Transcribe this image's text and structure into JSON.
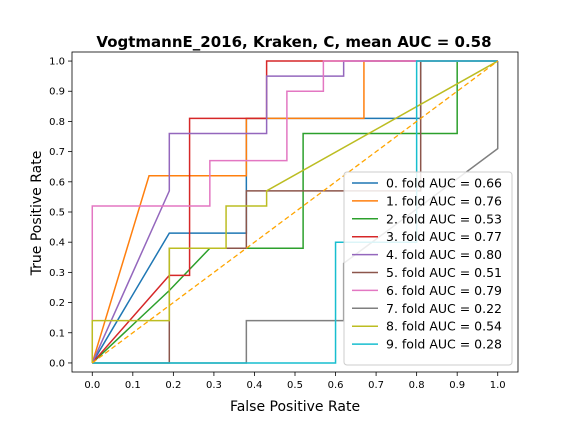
{
  "chart_data": {
    "type": "line",
    "title": "VogtmannE_2016, Kraken, C, mean AUC =  0.58",
    "xlabel": "False Positive Rate",
    "ylabel": "True Positive Rate",
    "xlim": [
      -0.05,
      1.05
    ],
    "ylim": [
      -0.03,
      1.03
    ],
    "xticks": [
      "0.0",
      "0.1",
      "0.2",
      "0.3",
      "0.4",
      "0.5",
      "0.6",
      "0.7",
      "0.8",
      "0.9",
      "1.0"
    ],
    "yticks": [
      "0.0",
      "0.1",
      "0.2",
      "0.3",
      "0.4",
      "0.5",
      "0.6",
      "0.7",
      "0.8",
      "0.9",
      "1.0"
    ],
    "grid": false,
    "legend": "lower-right",
    "diagonal": {
      "x": [
        0,
        1
      ],
      "y": [
        0,
        1
      ],
      "color": "#ffa500",
      "style": "dashed"
    },
    "series": [
      {
        "name": "0. fold AUC = 0.66",
        "color": "#1f77b4",
        "x": [
          0,
          0.19,
          0.19,
          0.38,
          0.38,
          0.67,
          0.67,
          0.81,
          0.81,
          1.0
        ],
        "y": [
          0,
          0.43,
          0.43,
          0.43,
          0.81,
          0.81,
          0.81,
          0.81,
          1.0,
          1.0
        ]
      },
      {
        "name": "1. fold AUC = 0.76",
        "color": "#ff7f0e",
        "x": [
          0,
          0.14,
          0.38,
          0.38,
          0.67,
          0.67,
          1.0
        ],
        "y": [
          0,
          0.62,
          0.62,
          0.81,
          0.81,
          1.0,
          1.0
        ]
      },
      {
        "name": "2. fold AUC = 0.53",
        "color": "#2ca02c",
        "x": [
          0,
          0.19,
          0.29,
          0.52,
          0.52,
          0.9,
          0.9,
          1.0
        ],
        "y": [
          0,
          0.24,
          0.38,
          0.38,
          0.76,
          0.76,
          1.0,
          1.0
        ]
      },
      {
        "name": "3. fold AUC = 0.77",
        "color": "#d62728",
        "x": [
          0,
          0.19,
          0.24,
          0.24,
          0.43,
          0.43,
          1.0
        ],
        "y": [
          0,
          0.29,
          0.29,
          0.81,
          0.81,
          1.0,
          1.0
        ]
      },
      {
        "name": "4. fold AUC = 0.80",
        "color": "#9467bd",
        "x": [
          0,
          0.19,
          0.19,
          0.43,
          0.43,
          0.62,
          0.62,
          1.0
        ],
        "y": [
          0,
          0.57,
          0.76,
          0.76,
          0.95,
          0.95,
          1.0,
          1.0
        ]
      },
      {
        "name": "5. fold AUC = 0.51",
        "color": "#8c564b",
        "x": [
          0,
          0.19,
          0.19,
          0.38,
          0.38,
          0.81,
          0.81,
          0.81,
          1.0
        ],
        "y": [
          0,
          0,
          0.38,
          0.38,
          0.57,
          0.57,
          0.62,
          1.0,
          1.0
        ]
      },
      {
        "name": "6. fold AUC = 0.79",
        "color": "#e377c2",
        "x": [
          0,
          0,
          0.29,
          0.29,
          0.48,
          0.48,
          0.57,
          0.57,
          1.0
        ],
        "y": [
          0,
          0.52,
          0.52,
          0.67,
          0.67,
          0.9,
          0.9,
          1.0,
          1.0
        ]
      },
      {
        "name": "7. fold AUC = 0.22",
        "color": "#7f7f7f",
        "x": [
          0,
          0.38,
          0.38,
          0.62,
          0.62,
          1.0,
          1.0
        ],
        "y": [
          0,
          0,
          0.14,
          0.14,
          0.33,
          0.71,
          1.0
        ]
      },
      {
        "name": "8. fold AUC = 0.54",
        "color": "#bcbd22",
        "x": [
          0,
          0,
          0.19,
          0.19,
          0.33,
          0.33,
          0.43,
          0.43,
          1.0
        ],
        "y": [
          0,
          0.14,
          0.14,
          0.38,
          0.38,
          0.52,
          0.52,
          0.57,
          1.0
        ]
      },
      {
        "name": "9. fold AUC = 0.28",
        "color": "#17becf",
        "x": [
          0,
          0.6,
          0.6,
          0.8,
          0.8,
          1.0
        ],
        "y": [
          0,
          0,
          0.4,
          0.4,
          1.0,
          1.0
        ]
      }
    ]
  }
}
